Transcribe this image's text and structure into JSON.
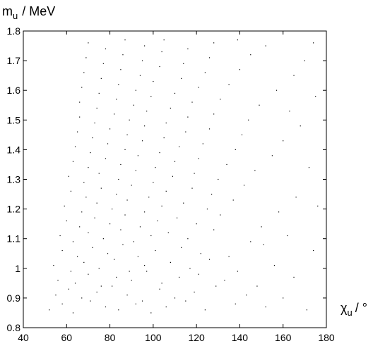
{
  "chart_data": {
    "type": "scatter",
    "ylabel": {
      "symbol": "m",
      "subscript": "u",
      "unit": "/ MeV"
    },
    "xlabel": {
      "symbol": "χ",
      "subscript": "u",
      "unit": "/ °"
    },
    "color": "#000000",
    "xlim": [
      40,
      180
    ],
    "xticks": [
      40,
      60,
      80,
      100,
      120,
      140,
      160,
      180
    ],
    "ylim": [
      0.8,
      1.8
    ],
    "yticks": [
      0.8,
      0.9,
      1,
      1.1,
      1.2,
      1.3,
      1.4,
      1.5,
      1.6,
      1.7,
      1.8
    ],
    "x": [
      52,
      58,
      63,
      71,
      78,
      84,
      92,
      99,
      106,
      115,
      124,
      138,
      152,
      171,
      55,
      61,
      67,
      74,
      81,
      88,
      95,
      103,
      110,
      119,
      129,
      143,
      160,
      56,
      64,
      70,
      76,
      83,
      90,
      97,
      104,
      112,
      121,
      133,
      148,
      165,
      54,
      62,
      68,
      75,
      82,
      89,
      96,
      108,
      117,
      126,
      139,
      156,
      58,
      65,
      72,
      79,
      86,
      93,
      101,
      113,
      122,
      135,
      151,
      174,
      57,
      63,
      70,
      77,
      85,
      91,
      99,
      107,
      116,
      128,
      145,
      162,
      60,
      66,
      73,
      80,
      87,
      94,
      102,
      111,
      120,
      131,
      150,
      59,
      67,
      74,
      81,
      88,
      96,
      104,
      114,
      125,
      137,
      158,
      176,
      62,
      69,
      76,
      83,
      90,
      98,
      106,
      118,
      127,
      142,
      166,
      61,
      68,
      75,
      84,
      92,
      100,
      109,
      119,
      130,
      147,
      63,
      70,
      78,
      85,
      93,
      101,
      110,
      121,
      134,
      155,
      172,
      64,
      71,
      79,
      87,
      95,
      103,
      112,
      123,
      138,
      160,
      65,
      72,
      80,
      88,
      96,
      105,
      115,
      126,
      141,
      168,
      66,
      73,
      82,
      89,
      97,
      106,
      116,
      128,
      144,
      163,
      66,
      74,
      83,
      91,
      99,
      108,
      118,
      131,
      149,
      175,
      67,
      75,
      84,
      92,
      100,
      110,
      121,
      135,
      157,
      68,
      76,
      85,
      94,
      103,
      113,
      124,
      140,
      165,
      69,
      77,
      86,
      95,
      104,
      114,
      126,
      145,
      170,
      70,
      78,
      87,
      96,
      105,
      116,
      128,
      139,
      152,
      174
    ],
    "y": [
      0.86,
      0.88,
      0.85,
      0.89,
      0.87,
      0.86,
      0.88,
      0.85,
      0.87,
      0.89,
      0.86,
      0.88,
      0.87,
      0.86,
      0.91,
      0.93,
      0.9,
      0.92,
      0.94,
      0.91,
      0.89,
      0.93,
      0.9,
      0.92,
      0.94,
      0.91,
      0.9,
      0.96,
      0.95,
      0.98,
      0.94,
      0.97,
      0.96,
      0.99,
      0.95,
      0.97,
      0.98,
      0.96,
      0.94,
      0.97,
      1.01,
      0.99,
      1.02,
      1.0,
      1.03,
      0.99,
      1.01,
      1.02,
      1.0,
      1.03,
      0.99,
      1.01,
      1.06,
      1.04,
      1.07,
      1.05,
      1.08,
      1.04,
      1.06,
      1.07,
      1.05,
      1.04,
      1.08,
      1.06,
      1.11,
      1.09,
      1.12,
      1.1,
      1.13,
      1.09,
      1.11,
      1.12,
      1.1,
      1.13,
      1.09,
      1.11,
      1.16,
      1.14,
      1.17,
      1.15,
      1.18,
      1.14,
      1.16,
      1.17,
      1.15,
      1.18,
      1.14,
      1.21,
      1.19,
      1.22,
      1.2,
      1.23,
      1.19,
      1.21,
      1.22,
      1.2,
      1.23,
      1.19,
      1.21,
      1.26,
      1.24,
      1.27,
      1.25,
      1.28,
      1.24,
      1.26,
      1.27,
      1.25,
      1.28,
      1.24,
      1.31,
      1.29,
      1.32,
      1.3,
      1.33,
      1.29,
      1.31,
      1.32,
      1.3,
      1.33,
      1.36,
      1.34,
      1.37,
      1.35,
      1.38,
      1.34,
      1.36,
      1.37,
      1.35,
      1.38,
      1.34,
      1.41,
      1.39,
      1.42,
      1.4,
      1.43,
      1.39,
      1.41,
      1.42,
      1.4,
      1.43,
      1.46,
      1.44,
      1.47,
      1.45,
      1.48,
      1.44,
      1.46,
      1.47,
      1.45,
      1.48,
      1.51,
      1.49,
      1.52,
      1.5,
      1.53,
      1.49,
      1.51,
      1.52,
      1.5,
      1.53,
      1.56,
      1.54,
      1.57,
      1.55,
      1.58,
      1.54,
      1.56,
      1.57,
      1.55,
      1.58,
      1.61,
      1.59,
      1.62,
      1.6,
      1.63,
      1.59,
      1.61,
      1.62,
      1.6,
      1.66,
      1.64,
      1.67,
      1.65,
      1.68,
      1.64,
      1.66,
      1.67,
      1.65,
      1.71,
      1.69,
      1.72,
      1.7,
      1.73,
      1.69,
      1.71,
      1.72,
      1.7,
      1.76,
      1.74,
      1.77,
      1.75,
      1.77,
      1.74,
      1.76,
      1.77,
      1.75,
      1.76
    ]
  }
}
